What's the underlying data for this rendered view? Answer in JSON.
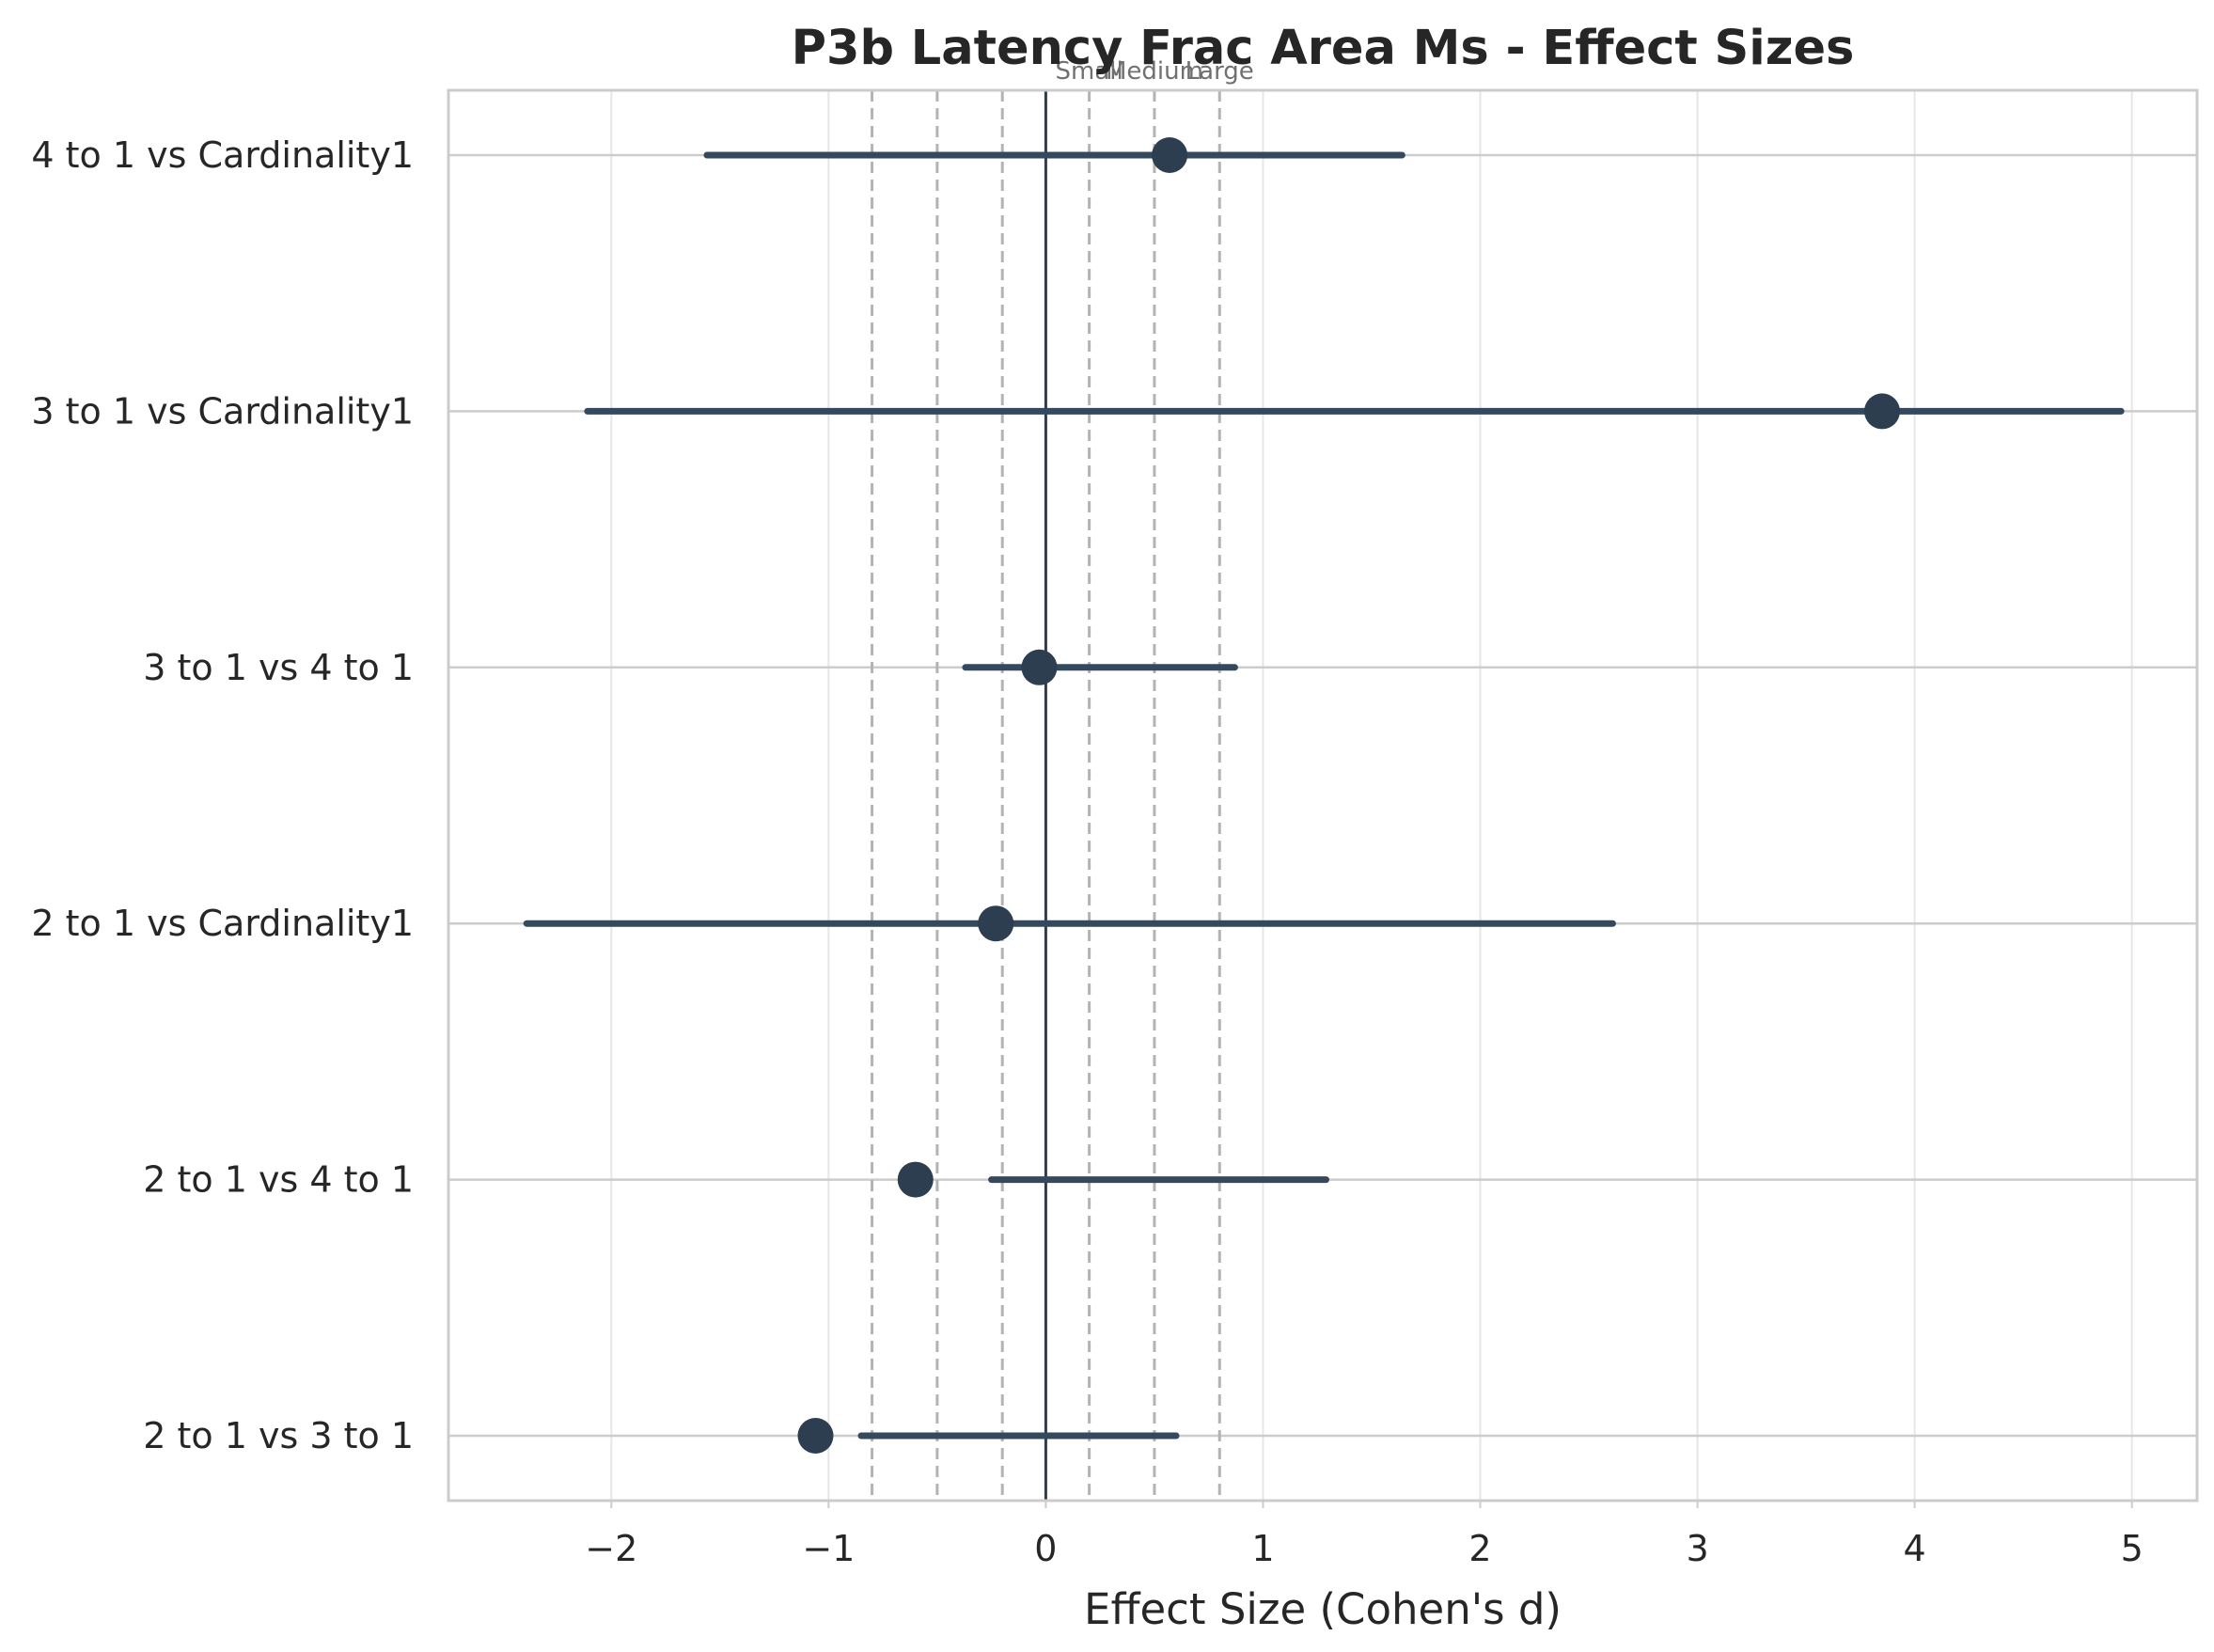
{
  "chart_data": {
    "type": "forest",
    "title": "P3b Latency Frac Area Ms - Effect Sizes",
    "xlabel": "Effect Size (Cohen's d)",
    "ylabel": "",
    "xlim": [
      -2.75,
      5.3
    ],
    "xticks": [
      -2,
      -1,
      0,
      1,
      2,
      3,
      4,
      5
    ],
    "xtick_labels": [
      "−2",
      "−1",
      "0",
      "1",
      "2",
      "3",
      "4",
      "5"
    ],
    "grid": true,
    "comparisons": [
      {
        "label": "4 to 1 vs Cardinality1",
        "d": 0.57,
        "ci": [
          -1.56,
          1.64
        ]
      },
      {
        "label": "3 to 1 vs Cardinality1",
        "d": 3.85,
        "ci": [
          -2.11,
          4.95
        ]
      },
      {
        "label": "3 to 1 vs 4 to 1",
        "d": -0.03,
        "ci": [
          -0.37,
          0.87
        ]
      },
      {
        "label": "2 to 1 vs Cardinality1",
        "d": -0.23,
        "ci": [
          -2.39,
          2.61
        ]
      },
      {
        "label": "2 to 1 vs 4 to 1",
        "d": -0.6,
        "ci": [
          -0.25,
          1.29
        ]
      },
      {
        "label": "2 to 1 vs 3 to 1",
        "d": -1.06,
        "ci": [
          -0.85,
          0.6
        ]
      }
    ],
    "reference_lines": [
      {
        "value": 0,
        "style": "solid"
      },
      {
        "value": -0.8,
        "style": "dashed"
      },
      {
        "value": -0.5,
        "style": "dashed"
      },
      {
        "value": -0.2,
        "style": "dashed"
      },
      {
        "value": 0.2,
        "style": "dashed"
      },
      {
        "value": 0.5,
        "style": "dashed"
      },
      {
        "value": 0.8,
        "style": "dashed"
      }
    ],
    "reference_labels": [
      {
        "text": "Small",
        "value": 0.2
      },
      {
        "text": "Medium",
        "value": 0.5
      },
      {
        "text": "Large",
        "value": 0.8
      }
    ],
    "colors": {
      "marker": "#2c3e50",
      "ci_line": "#34495e",
      "zero_line": "#2c3e50",
      "ref_line": "#b3b3b3",
      "grid": "#e6e6e6",
      "row_line": "#cccccc",
      "frame": "#cccccc"
    }
  }
}
